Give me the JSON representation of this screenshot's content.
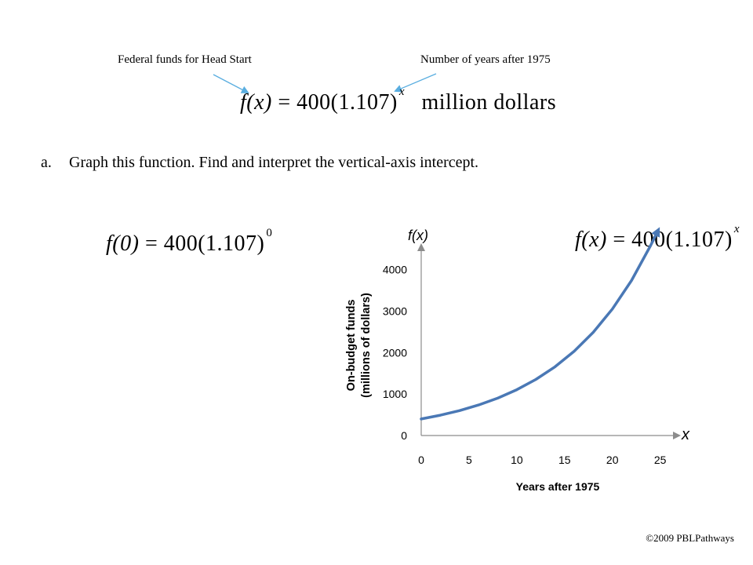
{
  "callouts": {
    "left": "Federal funds for Head Start",
    "right": "Number of years after 1975"
  },
  "equations": {
    "main_lhs": "f(x)",
    "main_rhs": " = 400(1.107)",
    "main_exp": "x",
    "main_units": "million dollars",
    "f0_lhs": "f(0)",
    "f0_rhs": " = 400(1.107)",
    "f0_exp": "0",
    "graph_lhs": "f(x)",
    "graph_rhs": " = 400(1.107)",
    "graph_exp": "x"
  },
  "question": {
    "marker": "a.",
    "text": "Graph this function. Find and interpret the vertical-axis intercept."
  },
  "footer": "©2009 PBLPathways",
  "colors": {
    "curve": "#4a78b5",
    "arrow": "#5aaee0",
    "axis": "#8c8c8c"
  },
  "chart_data": {
    "type": "line",
    "function": "400*1.107^x",
    "xlabel": "Years after 1975",
    "ylabel": "On-budget funds (millions of dollars)",
    "ylabel_lines": [
      "On-budget funds",
      "(millions of dollars)"
    ],
    "x_axis_name": "x",
    "y_axis_name": "f(x)",
    "xlim": [
      0,
      27
    ],
    "ylim": [
      0,
      4600
    ],
    "xticks": [
      0,
      5,
      10,
      15,
      20,
      25
    ],
    "yticks": [
      0,
      1000,
      2000,
      3000,
      4000
    ],
    "grid": false,
    "series": [
      {
        "x": [
          0,
          2,
          4,
          6,
          8,
          10,
          12,
          14,
          16,
          18,
          20,
          22,
          24,
          24.7
        ],
        "y": [
          400,
          490.2,
          600.6,
          735.9,
          901.7,
          1104.8,
          1353.7,
          1658.6,
          2032.3,
          2490.1,
          3051.1,
          3738.4,
          4580.6,
          4909.5
        ]
      }
    ]
  }
}
